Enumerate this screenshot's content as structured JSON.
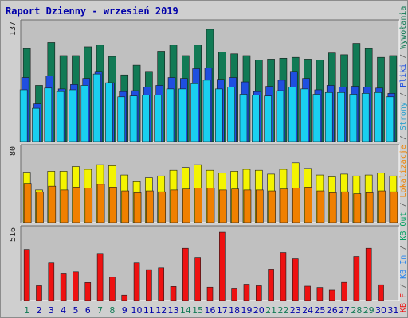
{
  "chart_data": {
    "type": "bar",
    "title": "Raport Dzienny - wrzesień 2019",
    "x": [
      "1",
      "2",
      "3",
      "4",
      "5",
      "6",
      "7",
      "8",
      "9",
      "10",
      "11",
      "12",
      "13",
      "14",
      "15",
      "16",
      "17",
      "18",
      "19",
      "20",
      "21",
      "22",
      "23",
      "24",
      "25",
      "26",
      "27",
      "28",
      "29",
      "30",
      "31"
    ],
    "weekend_days": [
      1,
      7,
      8,
      14,
      15,
      21,
      22,
      28,
      29
    ],
    "panels": [
      {
        "name": "top",
        "y_max_label": "137",
        "ylim": [
          0,
          137
        ],
        "series": [
          {
            "name": "Wywołania",
            "color": "#117a55",
            "values": [
              106,
              64,
              113,
              98,
              98,
              108,
              110,
              97,
              76,
              87,
              80,
              103,
              110,
              98,
              110,
              128,
              102,
              100,
              98,
              93,
              94,
              95,
              96,
              94,
              93,
              101,
              99,
              112,
              106,
              96,
              98
            ]
          },
          {
            "name": "Strony",
            "color": "#1f4fe0",
            "values": [
              73,
              43,
              75,
              60,
              65,
              72,
              80,
              67,
              57,
              58,
              62,
              64,
              73,
              72,
              83,
              84,
              71,
              73,
              68,
              57,
              63,
              70,
              80,
              72,
              59,
              64,
              62,
              63,
              62,
              61,
              55
            ]
          },
          {
            "name": "Pliki",
            "color": "#1ad0f0",
            "values": [
              59,
              38,
              61,
              57,
              59,
              64,
              77,
              67,
              51,
              52,
              53,
              53,
              60,
              60,
              66,
              70,
              60,
              62,
              54,
              53,
              52,
              58,
              62,
              60,
              54,
              56,
              56,
              54,
              55,
              56,
              51
            ]
          }
        ]
      },
      {
        "name": "middle",
        "y_max_label": "80",
        "ylim": [
          0,
          80
        ],
        "series": [
          {
            "name": "KB Out",
            "color": "#f4f400",
            "values": [
              54,
              35,
              55,
              55,
              60,
              57,
              62,
              61,
              51,
              44,
              48,
              50,
              56,
              59,
              62,
              56,
              53,
              55,
              57,
              56,
              52,
              57,
              64,
              58,
              51,
              49,
              52,
              50,
              51,
              53,
              50
            ]
          },
          {
            "name": "Lokalizacje",
            "color": "#f08000",
            "values": [
              42,
              33,
              39,
              35,
              38,
              37,
              41,
              38,
              34,
              32,
              34,
              33,
              35,
              36,
              37,
              37,
              35,
              36,
              35,
              35,
              34,
              36,
              37,
              38,
              34,
              32,
              33,
              31,
              32,
              34,
              33
            ]
          }
        ]
      },
      {
        "name": "bottom",
        "y_max_label": "516",
        "ylim": [
          0,
          516
        ],
        "series": [
          {
            "name": "KB F",
            "color": "#ee1111",
            "values": [
              361,
              104,
              265,
              188,
              203,
              127,
              332,
              164,
              38,
              265,
              218,
              231,
              99,
              369,
              305,
              94,
              482,
              87,
              115,
              104,
              222,
              339,
              294,
              101,
              92,
              73,
              128,
              311,
              369,
              111,
              0
            ]
          }
        ]
      }
    ],
    "right_labels": [
      {
        "text": "KB F",
        "color": "#ee1111"
      },
      {
        "text": "/",
        "color": "#555555"
      },
      {
        "text": "KB In",
        "color": "#2080f0"
      },
      {
        "text": "/",
        "color": "#555555"
      },
      {
        "text": "KB Out",
        "color": "#00a060"
      },
      {
        "text": "/",
        "color": "#555555"
      },
      {
        "text": "Lokalizacje",
        "color": "#f08000"
      },
      {
        "text": "/",
        "color": "#555555"
      },
      {
        "text": "Strony",
        "color": "#2aa0d0"
      },
      {
        "text": "/",
        "color": "#555555"
      },
      {
        "text": "Pliki",
        "color": "#1f4fe0"
      },
      {
        "text": "/",
        "color": "#555555"
      },
      {
        "text": "Wywołania",
        "color": "#117a55"
      }
    ]
  },
  "colors": {
    "background": "#cfcfcf",
    "plot_background": "#c0c0c0",
    "title": "#0000aa",
    "day_label": "#0000aa",
    "weekend_day_label": "#117a55"
  }
}
